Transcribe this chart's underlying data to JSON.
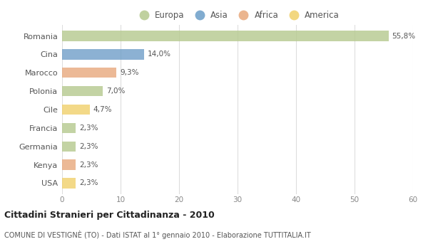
{
  "categories": [
    "Romania",
    "Cina",
    "Marocco",
    "Polonia",
    "Cile",
    "Francia",
    "Germania",
    "Kenya",
    "USA"
  ],
  "values": [
    55.8,
    14.0,
    9.3,
    7.0,
    4.7,
    2.3,
    2.3,
    2.3,
    2.3
  ],
  "labels": [
    "55,8%",
    "14,0%",
    "9,3%",
    "7,0%",
    "4,7%",
    "2,3%",
    "2,3%",
    "2,3%",
    "2,3%"
  ],
  "colors": [
    "#b5c98e",
    "#6f9ec8",
    "#e8a87c",
    "#b5c98e",
    "#f0d06a",
    "#b5c98e",
    "#b5c98e",
    "#e8a87c",
    "#f0d06a"
  ],
  "legend_labels": [
    "Europa",
    "Asia",
    "Africa",
    "America"
  ],
  "legend_colors": [
    "#b5c98e",
    "#6b9ec8",
    "#e8a87c",
    "#f0d06a"
  ],
  "title": "Cittadini Stranieri per Cittadinanza - 2010",
  "subtitle": "COMUNE DI VESTIGNÈ (TO) - Dati ISTAT al 1° gennaio 2010 - Elaborazione TUTTITALIA.IT",
  "xlim": [
    0,
    60
  ],
  "xticks": [
    0,
    10,
    20,
    30,
    40,
    50,
    60
  ],
  "background_color": "#ffffff",
  "grid_color": "#dddddd",
  "bar_height": 0.55
}
